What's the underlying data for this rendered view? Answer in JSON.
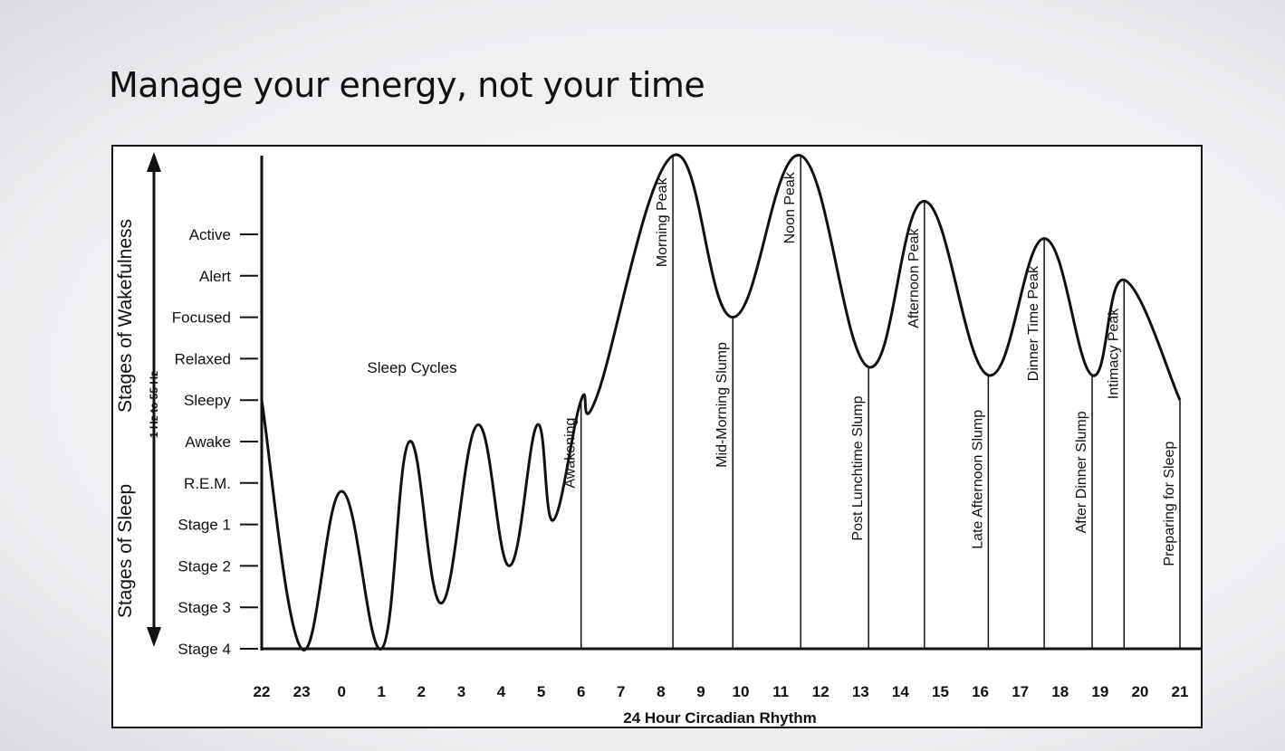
{
  "slide": {
    "title": "Manage your energy, not your time"
  },
  "chart_data": {
    "type": "line",
    "title": "",
    "xlabel": "24 Hour Circadian Rhythm",
    "x_ticks": [
      "22",
      "23",
      "0",
      "1",
      "2",
      "3",
      "4",
      "5",
      "6",
      "7",
      "8",
      "9",
      "10",
      "11",
      "12",
      "13",
      "14",
      "15",
      "16",
      "17",
      "18",
      "19",
      "20",
      "21"
    ],
    "y_levels": [
      "Stage 4",
      "Stage 3",
      "Stage 2",
      "Stage 1",
      "R.E.M.",
      "Awake",
      "Sleepy",
      "Relaxed",
      "Focused",
      "Alert",
      "Active"
    ],
    "y_group_labels": {
      "upper": "Stages of Wakefulness",
      "lower": "Stages of Sleep",
      "frequency": "1 Hz to 55 Hz"
    },
    "region_label": "Sleep Cycles",
    "series": [
      {
        "points": [
          [
            22.0,
            6.0
          ],
          [
            23.0,
            0.0
          ],
          [
            24.0,
            3.8
          ],
          [
            25.0,
            0.0
          ],
          [
            25.7,
            5.0
          ],
          [
            26.5,
            1.1
          ],
          [
            27.4,
            5.4
          ],
          [
            28.2,
            2.0
          ],
          [
            28.9,
            5.4
          ],
          [
            29.3,
            3.1
          ],
          [
            30.0,
            6.0
          ],
          [
            30.4,
            6.1
          ],
          [
            32.3,
            11.9
          ],
          [
            33.8,
            8.0
          ],
          [
            35.5,
            11.9
          ],
          [
            37.2,
            6.8
          ],
          [
            38.6,
            10.8
          ],
          [
            40.2,
            6.6
          ],
          [
            41.6,
            9.9
          ],
          [
            42.8,
            6.6
          ],
          [
            43.6,
            8.9
          ],
          [
            45.0,
            6.0
          ]
        ]
      }
    ],
    "annotations": [
      {
        "x": 30.0,
        "y": 6.0,
        "label": "Awakening"
      },
      {
        "x": 32.3,
        "y": 11.9,
        "label": "Morning Peak"
      },
      {
        "x": 33.8,
        "y": 8.0,
        "label": "Mid-Morning Slump"
      },
      {
        "x": 35.5,
        "y": 11.9,
        "label": "Noon Peak"
      },
      {
        "x": 37.2,
        "y": 6.8,
        "label": "Post Lunchtime Slump"
      },
      {
        "x": 38.6,
        "y": 10.8,
        "label": "Afternoon Peak"
      },
      {
        "x": 40.2,
        "y": 6.6,
        "label": "Late Afternoon Slump"
      },
      {
        "x": 41.6,
        "y": 9.9,
        "label": "Dinner Time Peak"
      },
      {
        "x": 42.8,
        "y": 6.6,
        "label": "After Dinner Slump"
      },
      {
        "x": 43.6,
        "y": 8.9,
        "label": "Intimacy Peak"
      },
      {
        "x": 45.0,
        "y": 6.0,
        "label": "Preparing for Sleep"
      }
    ],
    "xlim": [
      22,
      45
    ],
    "ylim": [
      0,
      12
    ],
    "grid": false,
    "colors": {
      "line": "#111111",
      "background": "#ffffff"
    }
  }
}
